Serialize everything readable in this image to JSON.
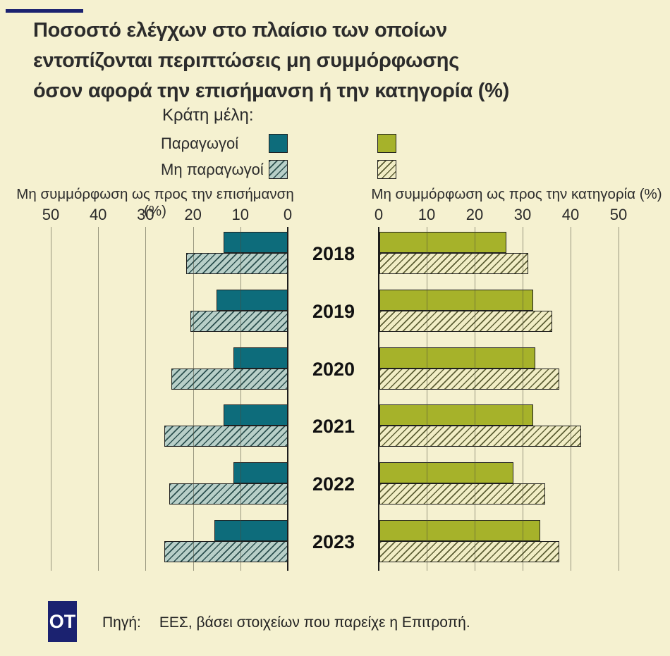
{
  "colors": {
    "background": "#f5f1d0",
    "navy": "#1b2270",
    "teal": "#0d6c7b",
    "teal_hatch_bg": "#b8cfc8",
    "teal_hatch_line": "#2b4f4e",
    "olive": "#a6b22a",
    "olive_hatch_bg": "#f1edc5",
    "olive_hatch_line": "#5d5f35",
    "text": "#2c2c2c"
  },
  "title": {
    "line1": "Ποσοστό ελέγχων στο πλαίσιο των οποίων",
    "line2": "εντοπίζονται περιπτώσεις μη συμμόρφωσης",
    "line3": "όσον αφορά την επισήμανση ή την κατηγορία (%)"
  },
  "legend": {
    "heading": "Κράτη μέλη:",
    "items": [
      {
        "label": "Παραγωγοί",
        "pattern": "solid"
      },
      {
        "label": "Μη παραγωγοί",
        "pattern": "hatched"
      }
    ]
  },
  "chart_data": [
    {
      "type": "bar",
      "orientation": "horizontal",
      "direction": "right-to-left",
      "title": "Μη συμμόρφωση ως προς την επισήμανση (%)",
      "axis_ticks": [
        50,
        40,
        30,
        20,
        10,
        0
      ],
      "xlim": [
        0,
        50
      ],
      "grid": true,
      "categories": [
        "2018",
        "2019",
        "2020",
        "2021",
        "2022",
        "2023"
      ],
      "series": [
        {
          "name": "Παραγωγοί",
          "pattern": "solid",
          "color": "#0d6c7b",
          "values": [
            13.5,
            15,
            11.5,
            13.5,
            11.5,
            15.5
          ]
        },
        {
          "name": "Μη παραγωγοί",
          "pattern": "hatched",
          "color": "#b8cfc8",
          "values": [
            21.5,
            20.5,
            24.5,
            26,
            25,
            26
          ]
        }
      ]
    },
    {
      "type": "bar",
      "orientation": "horizontal",
      "direction": "left-to-right",
      "title": "Μη συμμόρφωση ως προς την κατηγορία (%)",
      "axis_ticks": [
        0,
        10,
        20,
        30,
        40,
        50
      ],
      "xlim": [
        0,
        50
      ],
      "grid": true,
      "categories": [
        "2018",
        "2019",
        "2020",
        "2021",
        "2022",
        "2023"
      ],
      "series": [
        {
          "name": "Παραγωγοί",
          "pattern": "solid",
          "color": "#a6b22a",
          "values": [
            26.5,
            32,
            32.5,
            32,
            28,
            33.5
          ]
        },
        {
          "name": "Μη παραγωγοί",
          "pattern": "hatched",
          "color": "#f1edc5",
          "values": [
            31,
            36,
            37.5,
            42,
            34.5,
            37.5
          ]
        }
      ]
    }
  ],
  "footer": {
    "logo_text": "OT",
    "source_label": "Πηγή:",
    "source_text": "ΕΕΣ, βάσει στοιχείων που παρείχε η Επιτροπή."
  }
}
